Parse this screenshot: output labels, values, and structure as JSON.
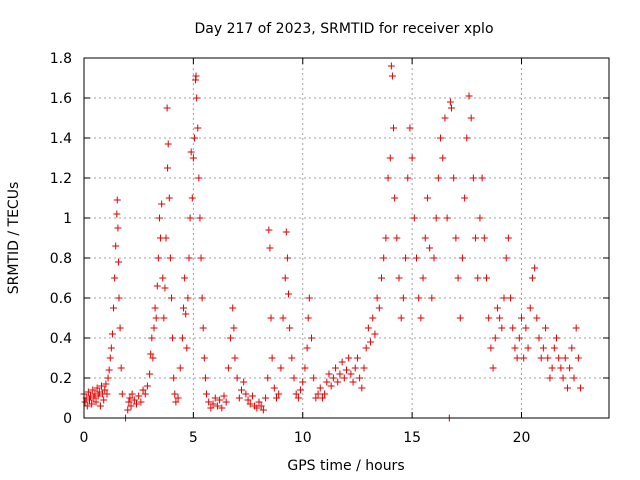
{
  "chart_data": {
    "type": "scatter",
    "title": "Day 217 of 2023, SRMTID for receiver xplo",
    "xlabel": "GPS time / hours",
    "ylabel": "SRMTID / TECUs",
    "xlim": [
      0,
      24
    ],
    "ylim": [
      0,
      1.8
    ],
    "xticks": [
      0,
      5,
      10,
      15,
      20
    ],
    "xtick_labels": [
      "0",
      "5",
      "10",
      "15",
      "20"
    ],
    "yticks": [
      0,
      0.2,
      0.4,
      0.6,
      0.8,
      1,
      1.2,
      1.4,
      1.6,
      1.8
    ],
    "ytick_labels": [
      "0",
      "0.2",
      "0.4",
      "0.6",
      "0.8",
      "1",
      "1.2",
      "1.4",
      "1.6",
      "1.8"
    ],
    "grid": true,
    "marker": "+",
    "marker_color": "#e00000",
    "series": [
      {
        "name": "xplo",
        "points": [
          [
            0.0,
            0.12
          ],
          [
            0.05,
            0.08
          ],
          [
            0.1,
            0.1
          ],
          [
            0.15,
            0.06
          ],
          [
            0.2,
            0.13
          ],
          [
            0.25,
            0.09
          ],
          [
            0.3,
            0.11
          ],
          [
            0.35,
            0.07
          ],
          [
            0.4,
            0.14
          ],
          [
            0.45,
            0.1
          ],
          [
            0.5,
            0.12
          ],
          [
            0.55,
            0.08
          ],
          [
            0.6,
            0.15
          ],
          [
            0.65,
            0.11
          ],
          [
            0.7,
            0.13
          ],
          [
            0.75,
            0.06
          ],
          [
            0.8,
            0.16
          ],
          [
            0.85,
            0.12
          ],
          [
            0.9,
            0.09
          ],
          [
            0.95,
            0.14
          ],
          [
            1.0,
            0.17
          ],
          [
            1.05,
            0.12
          ],
          [
            1.1,
            0.2
          ],
          [
            1.15,
            0.24
          ],
          [
            1.2,
            0.3
          ],
          [
            1.25,
            0.35
          ],
          [
            1.3,
            0.42
          ],
          [
            1.35,
            0.55
          ],
          [
            1.4,
            0.7
          ],
          [
            1.45,
            0.86
          ],
          [
            1.5,
            1.02
          ],
          [
            1.52,
            1.09
          ],
          [
            1.55,
            0.95
          ],
          [
            1.58,
            0.78
          ],
          [
            1.6,
            0.6
          ],
          [
            1.65,
            0.45
          ],
          [
            1.7,
            0.25
          ],
          [
            1.75,
            0.12
          ],
          [
            1.9,
            0.0
          ],
          [
            2.0,
            0.04
          ],
          [
            2.05,
            0.08
          ],
          [
            2.1,
            0.1
          ],
          [
            2.15,
            0.06
          ],
          [
            2.2,
            0.12
          ],
          [
            2.3,
            0.09
          ],
          [
            2.4,
            0.07
          ],
          [
            2.5,
            0.11
          ],
          [
            2.6,
            0.08
          ],
          [
            2.7,
            0.14
          ],
          [
            2.8,
            0.12
          ],
          [
            2.9,
            0.16
          ],
          [
            3.0,
            0.22
          ],
          [
            3.05,
            0.32
          ],
          [
            3.1,
            0.4
          ],
          [
            3.15,
            0.3
          ],
          [
            3.2,
            0.45
          ],
          [
            3.25,
            0.55
          ],
          [
            3.3,
            0.5
          ],
          [
            3.35,
            0.66
          ],
          [
            3.4,
            0.8
          ],
          [
            3.45,
            1.0
          ],
          [
            3.5,
            0.9
          ],
          [
            3.55,
            1.07
          ],
          [
            3.6,
            0.7
          ],
          [
            3.65,
            0.5
          ],
          [
            3.7,
            0.65
          ],
          [
            3.75,
            0.9
          ],
          [
            3.8,
            1.55
          ],
          [
            3.82,
            1.25
          ],
          [
            3.85,
            1.37
          ],
          [
            3.9,
            1.1
          ],
          [
            3.95,
            0.8
          ],
          [
            4.0,
            0.6
          ],
          [
            4.05,
            0.4
          ],
          [
            4.1,
            0.2
          ],
          [
            4.15,
            0.12
          ],
          [
            4.2,
            0.08
          ],
          [
            4.3,
            0.1
          ],
          [
            4.4,
            0.25
          ],
          [
            4.5,
            0.4
          ],
          [
            4.55,
            0.55
          ],
          [
            4.6,
            0.7
          ],
          [
            4.65,
            0.52
          ],
          [
            4.7,
            0.35
          ],
          [
            4.75,
            0.6
          ],
          [
            4.8,
            0.8
          ],
          [
            4.85,
            1.0
          ],
          [
            4.9,
            1.33
          ],
          [
            4.95,
            1.1
          ],
          [
            5.0,
            1.3
          ],
          [
            5.05,
            1.4
          ],
          [
            5.1,
            1.69
          ],
          [
            5.12,
            1.71
          ],
          [
            5.15,
            1.6
          ],
          [
            5.2,
            1.45
          ],
          [
            5.25,
            1.2
          ],
          [
            5.3,
            1.0
          ],
          [
            5.35,
            0.8
          ],
          [
            5.4,
            0.6
          ],
          [
            5.45,
            0.45
          ],
          [
            5.5,
            0.3
          ],
          [
            5.55,
            0.2
          ],
          [
            5.6,
            0.12
          ],
          [
            5.7,
            0.08
          ],
          [
            5.8,
            0.05
          ],
          [
            5.9,
            0.07
          ],
          [
            6.0,
            0.1
          ],
          [
            6.1,
            0.06
          ],
          [
            6.2,
            0.09
          ],
          [
            6.3,
            0.05
          ],
          [
            6.4,
            0.11
          ],
          [
            6.5,
            0.08
          ],
          [
            6.6,
            0.25
          ],
          [
            6.7,
            0.4
          ],
          [
            6.8,
            0.55
          ],
          [
            6.85,
            0.45
          ],
          [
            6.9,
            0.3
          ],
          [
            7.0,
            0.2
          ],
          [
            7.1,
            0.1
          ],
          [
            7.2,
            0.14
          ],
          [
            7.3,
            0.18
          ],
          [
            7.4,
            0.12
          ],
          [
            7.5,
            0.09
          ],
          [
            7.6,
            0.07
          ],
          [
            7.7,
            0.11
          ],
          [
            7.8,
            0.06
          ],
          [
            7.9,
            0.05
          ],
          [
            8.0,
            0.08
          ],
          [
            8.1,
            0.06
          ],
          [
            8.2,
            0.04
          ],
          [
            8.3,
            0.1
          ],
          [
            8.4,
            0.2
          ],
          [
            8.45,
            0.94
          ],
          [
            8.5,
            0.85
          ],
          [
            8.55,
            0.5
          ],
          [
            8.6,
            0.3
          ],
          [
            8.7,
            0.15
          ],
          [
            8.8,
            0.1
          ],
          [
            8.9,
            0.12
          ],
          [
            9.0,
            0.25
          ],
          [
            9.1,
            0.5
          ],
          [
            9.2,
            0.7
          ],
          [
            9.25,
            0.93
          ],
          [
            9.3,
            0.8
          ],
          [
            9.35,
            0.62
          ],
          [
            9.4,
            0.45
          ],
          [
            9.5,
            0.3
          ],
          [
            9.6,
            0.2
          ],
          [
            9.7,
            0.12
          ],
          [
            9.8,
            0.1
          ],
          [
            9.9,
            0.14
          ],
          [
            10.0,
            0.18
          ],
          [
            10.1,
            0.25
          ],
          [
            10.2,
            0.35
          ],
          [
            10.25,
            0.5
          ],
          [
            10.3,
            0.6
          ],
          [
            10.4,
            0.4
          ],
          [
            10.5,
            0.2
          ],
          [
            10.6,
            0.1
          ],
          [
            10.7,
            0.12
          ],
          [
            10.8,
            0.15
          ],
          [
            10.9,
            0.1
          ],
          [
            11.0,
            0.12
          ],
          [
            11.1,
            0.18
          ],
          [
            11.2,
            0.22
          ],
          [
            11.3,
            0.16
          ],
          [
            11.4,
            0.2
          ],
          [
            11.5,
            0.25
          ],
          [
            11.6,
            0.18
          ],
          [
            11.7,
            0.22
          ],
          [
            11.8,
            0.28
          ],
          [
            11.9,
            0.2
          ],
          [
            12.0,
            0.24
          ],
          [
            12.1,
            0.3
          ],
          [
            12.2,
            0.22
          ],
          [
            12.3,
            0.18
          ],
          [
            12.4,
            0.25
          ],
          [
            12.5,
            0.3
          ],
          [
            12.6,
            0.2
          ],
          [
            12.7,
            0.15
          ],
          [
            12.8,
            0.25
          ],
          [
            12.9,
            0.35
          ],
          [
            13.0,
            0.45
          ],
          [
            13.1,
            0.38
          ],
          [
            13.2,
            0.5
          ],
          [
            13.3,
            0.42
          ],
          [
            13.4,
            0.6
          ],
          [
            13.5,
            0.55
          ],
          [
            13.6,
            0.7
          ],
          [
            13.7,
            0.8
          ],
          [
            13.8,
            0.9
          ],
          [
            13.9,
            1.2
          ],
          [
            14.0,
            1.3
          ],
          [
            14.05,
            1.76
          ],
          [
            14.1,
            1.71
          ],
          [
            14.15,
            1.45
          ],
          [
            14.2,
            1.1
          ],
          [
            14.3,
            0.9
          ],
          [
            14.4,
            0.7
          ],
          [
            14.5,
            0.5
          ],
          [
            14.6,
            0.6
          ],
          [
            14.7,
            0.8
          ],
          [
            14.8,
            1.2
          ],
          [
            14.9,
            1.45
          ],
          [
            15.0,
            1.3
          ],
          [
            15.1,
            1.0
          ],
          [
            15.2,
            0.8
          ],
          [
            15.3,
            0.6
          ],
          [
            15.4,
            0.5
          ],
          [
            15.5,
            0.7
          ],
          [
            15.6,
            0.9
          ],
          [
            15.7,
            1.1
          ],
          [
            15.8,
            0.85
          ],
          [
            15.9,
            0.6
          ],
          [
            16.0,
            0.8
          ],
          [
            16.1,
            1.0
          ],
          [
            16.2,
            1.2
          ],
          [
            16.3,
            1.4
          ],
          [
            16.4,
            1.3
          ],
          [
            16.5,
            1.5
          ],
          [
            16.6,
            1.0
          ],
          [
            16.7,
            0.0
          ],
          [
            16.75,
            1.58
          ],
          [
            16.8,
            1.55
          ],
          [
            16.9,
            1.2
          ],
          [
            17.0,
            0.9
          ],
          [
            17.1,
            0.7
          ],
          [
            17.2,
            0.5
          ],
          [
            17.3,
            0.8
          ],
          [
            17.4,
            1.1
          ],
          [
            17.5,
            1.4
          ],
          [
            17.6,
            1.61
          ],
          [
            17.7,
            1.5
          ],
          [
            17.8,
            1.2
          ],
          [
            17.9,
            0.9
          ],
          [
            18.0,
            0.7
          ],
          [
            18.1,
            1.0
          ],
          [
            18.2,
            1.2
          ],
          [
            18.3,
            0.9
          ],
          [
            18.4,
            0.7
          ],
          [
            18.5,
            0.5
          ],
          [
            18.6,
            0.35
          ],
          [
            18.7,
            0.25
          ],
          [
            18.8,
            0.4
          ],
          [
            18.9,
            0.55
          ],
          [
            19.0,
            0.5
          ],
          [
            19.1,
            0.45
          ],
          [
            19.2,
            0.6
          ],
          [
            19.3,
            0.8
          ],
          [
            19.4,
            0.9
          ],
          [
            19.5,
            0.6
          ],
          [
            19.6,
            0.45
          ],
          [
            19.7,
            0.35
          ],
          [
            19.8,
            0.3
          ],
          [
            19.9,
            0.4
          ],
          [
            20.0,
            0.5
          ],
          [
            20.1,
            0.3
          ],
          [
            20.2,
            0.45
          ],
          [
            20.3,
            0.35
          ],
          [
            20.4,
            0.55
          ],
          [
            20.5,
            0.7
          ],
          [
            20.6,
            0.75
          ],
          [
            20.7,
            0.5
          ],
          [
            20.8,
            0.4
          ],
          [
            20.9,
            0.3
          ],
          [
            21.0,
            0.35
          ],
          [
            21.1,
            0.45
          ],
          [
            21.2,
            0.3
          ],
          [
            21.3,
            0.2
          ],
          [
            21.4,
            0.25
          ],
          [
            21.5,
            0.35
          ],
          [
            21.6,
            0.4
          ],
          [
            21.7,
            0.3
          ],
          [
            21.8,
            0.25
          ],
          [
            21.9,
            0.2
          ],
          [
            22.0,
            0.3
          ],
          [
            22.1,
            0.15
          ],
          [
            22.2,
            0.25
          ],
          [
            22.3,
            0.35
          ],
          [
            22.4,
            0.2
          ],
          [
            22.5,
            0.45
          ],
          [
            22.6,
            0.3
          ],
          [
            22.7,
            0.15
          ]
        ]
      }
    ]
  }
}
